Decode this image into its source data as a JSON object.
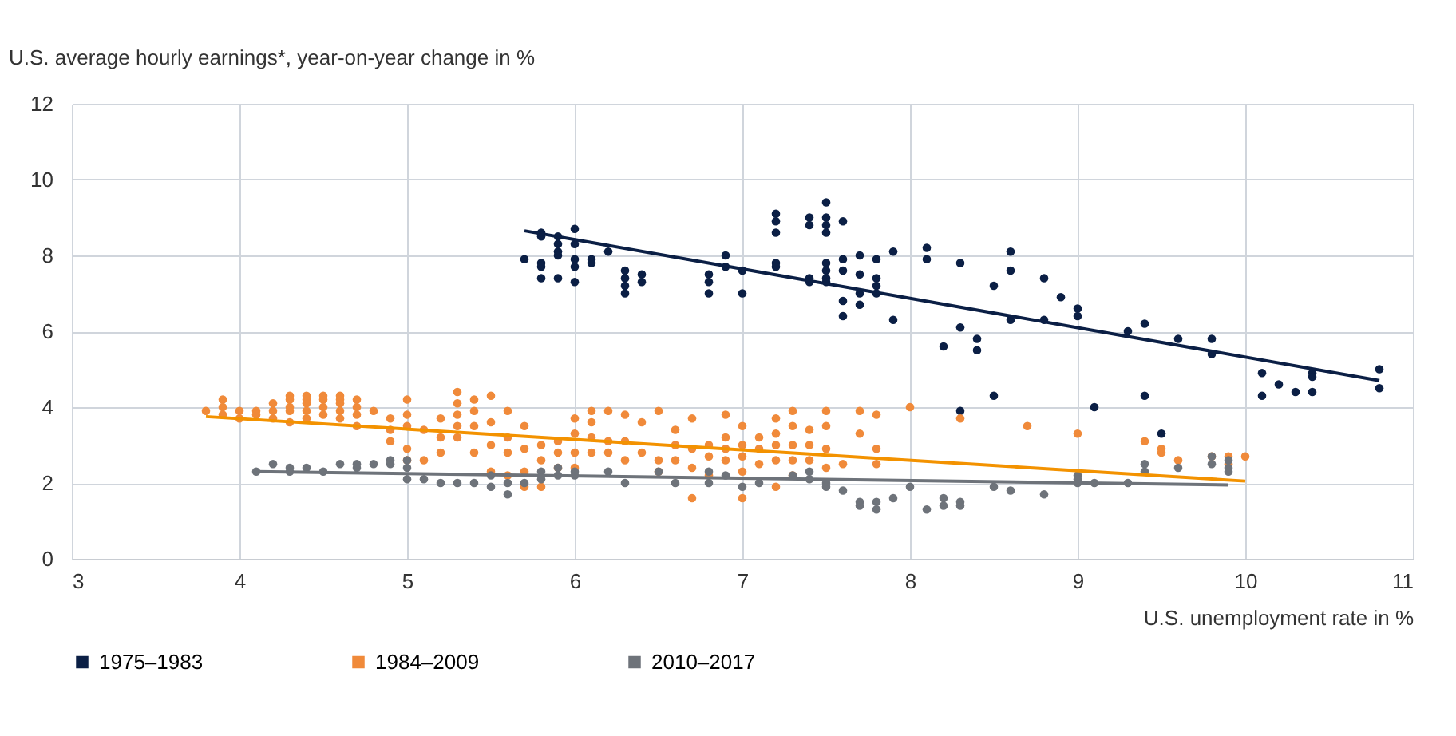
{
  "chart_data": {
    "type": "scatter",
    "ylabel": "U.S. average hourly earnings*, year-on-year change in %",
    "xlabel": "U.S. unemployment rate in %",
    "xlim": [
      3,
      11
    ],
    "xticks": [
      3,
      4,
      5,
      6,
      7,
      8,
      9,
      10,
      11
    ],
    "ylim": [
      0,
      12
    ],
    "yticks": [
      0,
      2,
      4,
      6,
      8,
      10,
      12
    ],
    "grid": true,
    "legend": "bottom left",
    "marker": "circle",
    "series": [
      {
        "name": "1975–1983",
        "color": "#0b1f45",
        "x": [
          5.7,
          5.8,
          5.8,
          5.8,
          5.8,
          5.8,
          5.9,
          5.9,
          5.9,
          5.9,
          5.9,
          6.0,
          6.0,
          6.0,
          6.0,
          6.0,
          6.1,
          6.1,
          6.2,
          6.3,
          6.3,
          6.3,
          6.3,
          6.4,
          6.4,
          6.8,
          6.8,
          6.8,
          6.9,
          6.9,
          7.0,
          7.0,
          7.2,
          7.2,
          7.2,
          7.2,
          7.2,
          7.4,
          7.4,
          7.4,
          7.4,
          7.5,
          7.5,
          7.5,
          7.5,
          7.5,
          7.5,
          7.5,
          7.5,
          7.6,
          7.6,
          7.6,
          7.6,
          7.6,
          7.7,
          7.7,
          7.7,
          7.7,
          7.8,
          7.8,
          7.8,
          7.8,
          7.9,
          7.9,
          8.1,
          8.1,
          8.2,
          8.3,
          8.3,
          8.3,
          8.4,
          8.4,
          8.5,
          8.5,
          8.6,
          8.6,
          8.6,
          8.8,
          8.8,
          8.9,
          9.0,
          9.0,
          9.1,
          9.3,
          9.4,
          9.4,
          9.5,
          9.6,
          9.8,
          9.8,
          10.1,
          10.1,
          10.2,
          10.3,
          10.4,
          10.4,
          10.4,
          10.8,
          10.8
        ],
        "values": [
          7.9,
          8.5,
          8.6,
          7.4,
          7.8,
          7.7,
          8.5,
          8.3,
          8.1,
          8.0,
          7.4,
          8.7,
          8.3,
          7.9,
          7.7,
          7.3,
          7.9,
          7.8,
          8.1,
          7.6,
          7.4,
          7.2,
          7.0,
          7.5,
          7.3,
          7.5,
          7.3,
          7.0,
          8.0,
          7.7,
          7.6,
          7.0,
          9.1,
          8.9,
          8.6,
          7.8,
          7.7,
          9.0,
          8.8,
          7.4,
          7.3,
          9.4,
          9.0,
          8.8,
          8.6,
          7.8,
          7.6,
          7.4,
          7.3,
          8.9,
          7.9,
          7.6,
          6.8,
          6.4,
          8.0,
          7.5,
          7.0,
          6.7,
          7.9,
          7.4,
          7.2,
          7.0,
          8.1,
          6.3,
          8.2,
          7.9,
          5.6,
          7.8,
          6.1,
          3.9,
          5.8,
          5.5,
          7.2,
          4.3,
          8.1,
          7.6,
          6.3,
          7.4,
          6.3,
          6.9,
          6.6,
          6.4,
          4.0,
          6.0,
          6.2,
          4.3,
          3.3,
          5.8,
          5.8,
          5.4,
          4.9,
          4.3,
          4.6,
          4.4,
          4.9,
          4.8,
          4.4,
          5.0,
          4.5
        ]
      },
      {
        "name": "1984–2009",
        "color": "#f08a3a",
        "x": [
          3.8,
          3.9,
          3.9,
          3.9,
          4.0,
          4.0,
          4.1,
          4.1,
          4.2,
          4.2,
          4.2,
          4.3,
          4.3,
          4.3,
          4.3,
          4.3,
          4.4,
          4.4,
          4.4,
          4.4,
          4.4,
          4.5,
          4.5,
          4.5,
          4.5,
          4.6,
          4.6,
          4.6,
          4.6,
          4.6,
          4.7,
          4.7,
          4.7,
          4.7,
          4.8,
          4.9,
          4.9,
          4.9,
          5.0,
          5.0,
          5.0,
          5.0,
          5.0,
          5.1,
          5.1,
          5.2,
          5.2,
          5.2,
          5.3,
          5.3,
          5.3,
          5.3,
          5.3,
          5.4,
          5.4,
          5.4,
          5.4,
          5.5,
          5.5,
          5.5,
          5.5,
          5.6,
          5.6,
          5.6,
          5.6,
          5.7,
          5.7,
          5.7,
          5.7,
          5.8,
          5.8,
          5.8,
          5.9,
          5.9,
          5.9,
          6.0,
          6.0,
          6.0,
          6.0,
          6.1,
          6.1,
          6.1,
          6.1,
          6.2,
          6.2,
          6.2,
          6.3,
          6.3,
          6.3,
          6.4,
          6.4,
          6.5,
          6.5,
          6.5,
          6.6,
          6.6,
          6.6,
          6.7,
          6.7,
          6.7,
          6.7,
          6.8,
          6.8,
          6.8,
          6.9,
          6.9,
          6.9,
          6.9,
          7.0,
          7.0,
          7.0,
          7.0,
          7.0,
          7.1,
          7.1,
          7.1,
          7.2,
          7.2,
          7.2,
          7.2,
          7.2,
          7.3,
          7.3,
          7.3,
          7.3,
          7.3,
          7.4,
          7.4,
          7.4,
          7.5,
          7.5,
          7.5,
          7.5,
          7.6,
          7.7,
          7.7,
          7.8,
          7.8,
          7.8,
          8.0,
          8.3,
          8.7,
          9.0,
          9.4,
          9.5,
          9.5,
          9.6,
          9.8,
          9.9,
          9.9,
          10.0
        ],
        "values": [
          3.9,
          4.2,
          4.0,
          3.8,
          3.9,
          3.7,
          3.9,
          3.8,
          4.1,
          3.9,
          3.7,
          4.3,
          4.2,
          4.0,
          3.9,
          3.6,
          4.3,
          4.2,
          4.1,
          3.9,
          3.7,
          4.3,
          4.2,
          4.0,
          3.8,
          4.3,
          4.2,
          4.1,
          3.9,
          3.7,
          4.2,
          4.0,
          3.8,
          3.5,
          3.9,
          3.7,
          3.4,
          3.1,
          4.2,
          3.8,
          3.5,
          2.9,
          2.6,
          3.4,
          2.6,
          3.7,
          3.2,
          2.8,
          4.4,
          4.1,
          3.8,
          3.5,
          3.2,
          4.2,
          3.9,
          3.5,
          2.8,
          4.3,
          3.6,
          3.0,
          2.3,
          3.9,
          3.2,
          2.8,
          2.2,
          3.5,
          2.9,
          2.3,
          1.9,
          3.0,
          2.6,
          1.9,
          3.1,
          2.8,
          2.4,
          3.7,
          3.3,
          2.8,
          2.4,
          3.9,
          3.6,
          3.2,
          2.8,
          3.9,
          3.1,
          2.8,
          3.8,
          3.1,
          2.6,
          3.6,
          2.8,
          3.9,
          2.6,
          2.3,
          3.4,
          3.0,
          2.6,
          3.7,
          2.9,
          2.4,
          1.6,
          3.0,
          2.7,
          2.2,
          3.8,
          3.2,
          2.9,
          2.6,
          3.5,
          3.0,
          2.7,
          2.3,
          1.6,
          3.2,
          2.9,
          2.5,
          3.7,
          3.3,
          3.0,
          2.6,
          1.9,
          3.9,
          3.5,
          3.0,
          2.6,
          2.2,
          3.4,
          3.0,
          2.6,
          3.9,
          3.5,
          2.9,
          2.4,
          2.5,
          3.9,
          3.3,
          3.8,
          2.9,
          2.5,
          4.0,
          3.7,
          3.5,
          3.3,
          3.1,
          2.9,
          2.8,
          2.6,
          2.7,
          2.7,
          2.5,
          2.7
        ]
      },
      {
        "name": "2010–2017",
        "color": "#6e737a",
        "x": [
          4.1,
          4.2,
          4.3,
          4.3,
          4.4,
          4.5,
          4.6,
          4.7,
          4.7,
          4.8,
          4.9,
          4.9,
          5.0,
          5.0,
          5.0,
          5.1,
          5.2,
          5.3,
          5.4,
          5.5,
          5.5,
          5.6,
          5.6,
          5.7,
          5.8,
          5.8,
          5.9,
          5.9,
          6.0,
          6.0,
          6.2,
          6.3,
          6.5,
          6.6,
          6.8,
          6.8,
          6.9,
          7.0,
          7.1,
          7.3,
          7.4,
          7.4,
          7.5,
          7.5,
          7.6,
          7.7,
          7.7,
          7.8,
          7.8,
          7.9,
          8.0,
          8.1,
          8.2,
          8.2,
          8.3,
          8.3,
          8.5,
          8.6,
          8.8,
          9.0,
          9.0,
          9.0,
          9.1,
          9.3,
          9.4,
          9.4,
          9.6,
          9.8,
          9.8,
          9.9,
          9.9,
          9.9
        ],
        "values": [
          2.3,
          2.5,
          2.4,
          2.3,
          2.4,
          2.3,
          2.5,
          2.4,
          2.5,
          2.5,
          2.6,
          2.5,
          2.6,
          2.4,
          2.1,
          2.1,
          2.0,
          2.0,
          2.0,
          2.2,
          1.9,
          2.0,
          1.7,
          2.0,
          2.3,
          2.1,
          2.4,
          2.2,
          2.2,
          2.3,
          2.3,
          2.0,
          2.3,
          2.0,
          2.3,
          2.0,
          2.2,
          1.9,
          2.0,
          2.2,
          2.3,
          2.1,
          2.0,
          1.9,
          1.8,
          1.5,
          1.4,
          1.5,
          1.3,
          1.6,
          1.9,
          1.3,
          1.6,
          1.4,
          1.5,
          1.4,
          1.9,
          1.8,
          1.7,
          2.2,
          2.1,
          2.0,
          2.0,
          2.0,
          2.5,
          2.3,
          2.4,
          2.7,
          2.5,
          2.6,
          2.4,
          2.3
        ]
      },
      {
        "type": "line",
        "marker": "none",
        "color": "#0b1f45",
        "x": [
          5.7,
          10.8
        ],
        "values": [
          8.65,
          4.7
        ]
      },
      {
        "type": "line",
        "marker": "none",
        "color": "#f39200",
        "x": [
          3.8,
          10.0
        ],
        "values": [
          3.75,
          2.05
        ]
      },
      {
        "type": "line",
        "marker": "none",
        "color": "#6e737a",
        "x": [
          4.1,
          9.9
        ],
        "values": [
          2.3,
          1.95
        ]
      }
    ]
  }
}
